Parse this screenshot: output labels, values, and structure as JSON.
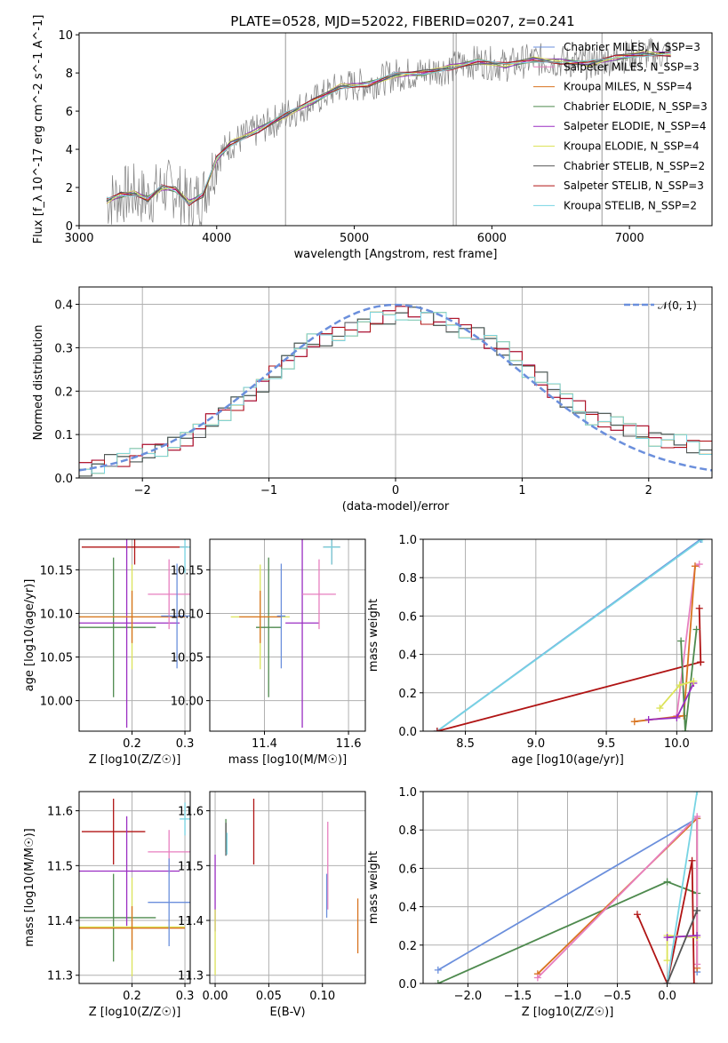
{
  "chart_data": [
    {
      "id": "spectrum",
      "type": "line",
      "title": "PLATE=0528, MJD=52022, FIBERID=0207, z=0.241",
      "xlabel": "wavelength [Angstrom, rest frame]",
      "ylabel": "Flux [f_λ 10^-17 erg cm^-2 s^-1 A^-1]",
      "xlim": [
        3000,
        7600
      ],
      "ylim": [
        0,
        10.1
      ],
      "xticks": [
        "3000",
        "4000",
        "5000",
        "6000",
        "7000"
      ],
      "yticks": [
        "0",
        "2",
        "4",
        "6",
        "8",
        "10"
      ],
      "grid": false,
      "legend_placement": "upper-right",
      "legend": [
        {
          "name": "Chabrier MILES, N_SSP=3",
          "color": "#6b8fdc"
        },
        {
          "name": "Salpeter MILES, N_SSP=3",
          "color": "#e77fbf"
        },
        {
          "name": "Kroupa MILES, N_SSP=4",
          "color": "#d8731f"
        },
        {
          "name": "Chabrier ELODIE, N_SSP=3",
          "color": "#4e8a4e"
        },
        {
          "name": "Salpeter ELODIE, N_SSP=4",
          "color": "#9a2ec2"
        },
        {
          "name": "Kroupa ELODIE, N_SSP=4",
          "color": "#dce35a"
        },
        {
          "name": "Chabrier STELIB, N_SSP=2",
          "color": "#555555"
        },
        {
          "name": "Salpeter STELIB, N_SSP=3",
          "color": "#b01414"
        },
        {
          "name": "Kroupa STELIB, N_SSP=2",
          "color": "#77d4e3"
        }
      ],
      "data_color": "#808080",
      "model_envelope": {
        "x": [
          3200,
          3300,
          3400,
          3500,
          3600,
          3700,
          3800,
          3900,
          4000,
          4100,
          4300,
          4500,
          4700,
          4900,
          5100,
          5300,
          5500,
          5700,
          5900,
          6100,
          6300,
          6500,
          6700,
          6900,
          7100,
          7300
        ],
        "y": [
          1.3,
          1.6,
          1.7,
          1.4,
          2.0,
          1.9,
          1.2,
          1.6,
          3.5,
          4.3,
          5.0,
          5.8,
          6.5,
          7.3,
          7.4,
          7.9,
          8.0,
          8.3,
          8.6,
          8.4,
          8.7,
          8.6,
          8.5,
          8.8,
          9.0,
          9.0
        ]
      }
    },
    {
      "id": "residuals",
      "type": "line",
      "xlabel": "(data-model)/error",
      "ylabel": "Normed distribution",
      "xlim": [
        -2.5,
        2.5
      ],
      "ylim": [
        0,
        0.44
      ],
      "xticks": [
        "−2",
        "−1",
        "0",
        "1",
        "2"
      ],
      "yticks": [
        "0.0",
        "0.1",
        "0.2",
        "0.3",
        "0.4"
      ],
      "grid": true,
      "legend": [
        {
          "name": "𝒩(0, 1)",
          "color": "#6b8fdc",
          "style": "dashed"
        }
      ],
      "histogram_envelope": {
        "x": [
          -2.5,
          -2.25,
          -2.0,
          -1.75,
          -1.5,
          -1.25,
          -1.0,
          -0.75,
          -0.5,
          -0.25,
          0.0,
          0.25,
          0.5,
          0.75,
          1.0,
          1.25,
          1.5,
          1.75,
          2.0,
          2.25,
          2.5
        ],
        "y": [
          0.02,
          0.04,
          0.06,
          0.08,
          0.13,
          0.18,
          0.24,
          0.31,
          0.33,
          0.36,
          0.38,
          0.37,
          0.34,
          0.31,
          0.25,
          0.19,
          0.14,
          0.12,
          0.09,
          0.08,
          0.06
        ]
      }
    },
    {
      "id": "age_vs_Z",
      "type": "scatter",
      "xlabel": "Z [log10(Z/Z☉)]",
      "ylabel": "age  [log10(age/yr)]",
      "xlim": [
        0.1,
        0.31
      ],
      "ylim": [
        9.965,
        10.185
      ],
      "xticks": [
        "0.2",
        "0.3"
      ],
      "yticks": [
        "10.00",
        "10.05",
        "10.10",
        "10.15"
      ],
      "grid": true,
      "points": [
        {
          "x": 0.205,
          "y": 10.176,
          "xerr": 0.1,
          "yerr": 0.02,
          "color": "#b01414"
        },
        {
          "x": 0.165,
          "y": 10.084,
          "xerr": 0.08,
          "yerr": 0.08,
          "color": "#4e8a4e"
        },
        {
          "x": 0.19,
          "y": 10.089,
          "xerr": 0.1,
          "yerr": 0.12,
          "color": "#9a2ec2"
        },
        {
          "x": 0.2,
          "y": 10.096,
          "xerr": 0.1,
          "yerr": 0.06,
          "color": "#dce35a"
        },
        {
          "x": 0.2,
          "y": 10.096,
          "xerr": 0.1,
          "yerr": 0.03,
          "color": "#d8731f"
        },
        {
          "x": 0.27,
          "y": 10.122,
          "xerr": 0.04,
          "yerr": 0.04,
          "color": "#e77fbf"
        },
        {
          "x": 0.285,
          "y": 10.097,
          "xerr": 0.03,
          "yerr": 0.06,
          "color": "#6b8fdc"
        },
        {
          "x": 0.3,
          "y": 10.176,
          "xerr": 0.01,
          "yerr": 0.03,
          "color": "#77d4e3"
        }
      ]
    },
    {
      "id": "age_vs_mass",
      "type": "scatter",
      "xlabel": "mass [log10(M/M☉)]",
      "xlim": [
        11.27,
        11.64
      ],
      "ylim": [
        9.965,
        10.185
      ],
      "xticks": [
        "11.4",
        "11.6"
      ],
      "yticks": [
        "10.00",
        "10.05",
        "10.10",
        "10.15"
      ],
      "grid": true,
      "points": [
        {
          "x": 11.56,
          "y": 10.176,
          "xerr": 0.02,
          "yerr": 0.02,
          "color": "#b01414"
        },
        {
          "x": 11.41,
          "y": 10.084,
          "xerr": 0.03,
          "yerr": 0.08,
          "color": "#4e8a4e"
        },
        {
          "x": 11.49,
          "y": 10.089,
          "xerr": 0.04,
          "yerr": 0.12,
          "color": "#9a2ec2"
        },
        {
          "x": 11.39,
          "y": 10.096,
          "xerr": 0.07,
          "yerr": 0.06,
          "color": "#dce35a"
        },
        {
          "x": 11.39,
          "y": 10.096,
          "xerr": 0.05,
          "yerr": 0.03,
          "color": "#d8731f"
        },
        {
          "x": 11.53,
          "y": 10.122,
          "xerr": 0.04,
          "yerr": 0.04,
          "color": "#e77fbf"
        },
        {
          "x": 11.44,
          "y": 10.097,
          "xerr": 0.01,
          "yerr": 0.06,
          "color": "#6b8fdc"
        },
        {
          "x": 11.56,
          "y": 10.176,
          "xerr": 0.02,
          "yerr": 0.02,
          "color": "#77d4e3"
        }
      ]
    },
    {
      "id": "mass_weight_vs_age",
      "type": "line",
      "xlabel": "age  [log10(age/yr)]",
      "ylabel": "mass weight",
      "xlim": [
        8.2,
        10.25
      ],
      "ylim": [
        0,
        1.0
      ],
      "xticks": [
        "8.5",
        "9.0",
        "9.5",
        "10.0"
      ],
      "yticks": [
        "0.0",
        "0.2",
        "0.4",
        "0.6",
        "0.8",
        "1.0"
      ],
      "grid": true,
      "series": [
        {
          "color": "#6b8fdc",
          "x": [
            8.3,
            10.17
          ],
          "y": [
            0.0,
            1.0
          ]
        },
        {
          "color": "#77d4e3",
          "x": [
            8.3,
            10.18
          ],
          "y": [
            0.0,
            1.0
          ]
        },
        {
          "color": "#b01414",
          "x": [
            8.3,
            10.17,
            10.16,
            10.17
          ],
          "y": [
            0.0,
            0.36,
            0.64,
            0.36
          ]
        },
        {
          "color": "#e77fbf",
          "x": [
            10.0,
            10.13,
            10.16
          ],
          "y": [
            0.08,
            0.86,
            0.87
          ]
        },
        {
          "color": "#d8731f",
          "x": [
            9.7,
            10.05,
            10.13
          ],
          "y": [
            0.05,
            0.08,
            0.86
          ]
        },
        {
          "color": "#4e8a4e",
          "x": [
            10.03,
            10.06,
            10.14
          ],
          "y": [
            0.47,
            0.0,
            0.53
          ]
        },
        {
          "color": "#9a2ec2",
          "x": [
            9.8,
            10.0,
            10.12
          ],
          "y": [
            0.06,
            0.07,
            0.25
          ]
        },
        {
          "color": "#dce35a",
          "x": [
            9.88,
            10.02,
            10.12
          ],
          "y": [
            0.12,
            0.24,
            0.26
          ]
        }
      ]
    },
    {
      "id": "mass_vs_Z",
      "type": "scatter",
      "xlabel": "Z [log10(Z/Z☉)]",
      "ylabel": "mass [log10(M/M☉)]",
      "xlim": [
        0.1,
        0.31
      ],
      "ylim": [
        11.285,
        11.635
      ],
      "xticks": [
        "0.2",
        "0.3"
      ],
      "yticks": [
        "11.3",
        "11.4",
        "11.5",
        "11.6"
      ],
      "grid": true,
      "points": [
        {
          "x": 0.165,
          "y": 11.562,
          "xerr": 0.06,
          "yerr": 0.06,
          "color": "#b01414"
        },
        {
          "x": 0.165,
          "y": 11.405,
          "xerr": 0.08,
          "yerr": 0.08,
          "color": "#4e8a4e"
        },
        {
          "x": 0.19,
          "y": 11.49,
          "xerr": 0.1,
          "yerr": 0.1,
          "color": "#9a2ec2"
        },
        {
          "x": 0.2,
          "y": 11.388,
          "xerr": 0.1,
          "yerr": 0.09,
          "color": "#dce35a"
        },
        {
          "x": 0.2,
          "y": 11.386,
          "xerr": 0.1,
          "yerr": 0.04,
          "color": "#d8731f"
        },
        {
          "x": 0.27,
          "y": 11.525,
          "xerr": 0.04,
          "yerr": 0.04,
          "color": "#e77fbf"
        },
        {
          "x": 0.27,
          "y": 11.433,
          "xerr": 0.04,
          "yerr": 0.08,
          "color": "#6b8fdc"
        },
        {
          "x": 0.3,
          "y": 11.585,
          "xerr": 0.01,
          "yerr": 0.03,
          "color": "#77d4e3"
        }
      ]
    },
    {
      "id": "mass_vs_EBV",
      "type": "scatter",
      "xlabel": "E(B-V)",
      "xlim": [
        -0.005,
        0.14
      ],
      "ylim": [
        11.285,
        11.635
      ],
      "xticks": [
        "0.00",
        "0.05",
        "0.10"
      ],
      "yticks": [
        "11.3",
        "11.4",
        "11.5",
        "11.6"
      ],
      "grid": true,
      "points": [
        {
          "x": 0.036,
          "y": 11.562,
          "yerr": 0.06,
          "color": "#b01414"
        },
        {
          "x": 0.01,
          "y": 11.555,
          "yerr": 0.03,
          "color": "#4e8a4e"
        },
        {
          "x": 0.01,
          "y": 11.548,
          "yerr": 0.03,
          "color": "#555555"
        },
        {
          "x": 0.0,
          "y": 11.45,
          "yerr": 0.07,
          "color": "#9a2ec2"
        },
        {
          "x": 0.0,
          "y": 11.36,
          "yerr": 0.06,
          "color": "#dce35a"
        },
        {
          "x": 0.133,
          "y": 11.39,
          "yerr": 0.05,
          "color": "#d8731f"
        },
        {
          "x": 0.105,
          "y": 11.5,
          "yerr": 0.08,
          "color": "#e77fbf"
        },
        {
          "x": 0.104,
          "y": 11.445,
          "yerr": 0.04,
          "color": "#6b8fdc"
        },
        {
          "x": 0.011,
          "y": 11.54,
          "yerr": 0.02,
          "color": "#77d4e3"
        }
      ]
    },
    {
      "id": "mass_weight_vs_Z",
      "type": "line",
      "xlabel": "Z [log10(Z/Z☉)]",
      "ylabel": "mass weight",
      "xlim": [
        -2.45,
        0.45
      ],
      "ylim": [
        0,
        1.0
      ],
      "xticks": [
        "−2.0",
        "−1.5",
        "−1.0",
        "−0.5",
        "0.0"
      ],
      "yticks": [
        "0.0",
        "0.2",
        "0.4",
        "0.6",
        "0.8",
        "1.0"
      ],
      "grid": true,
      "series": [
        {
          "color": "#6b8fdc",
          "x": [
            -2.3,
            0.3,
            0.3
          ],
          "y": [
            0.07,
            0.86,
            0.06
          ]
        },
        {
          "color": "#4e8a4e",
          "x": [
            -2.3,
            0.0,
            0.3
          ],
          "y": [
            0.0,
            0.53,
            0.47
          ]
        },
        {
          "color": "#d8731f",
          "x": [
            -1.3,
            0.3,
            0.3
          ],
          "y": [
            0.05,
            0.86,
            0.08
          ]
        },
        {
          "color": "#e77fbf",
          "x": [
            -1.3,
            0.3,
            0.3
          ],
          "y": [
            0.03,
            0.87,
            0.1
          ]
        },
        {
          "color": "#b01414",
          "x": [
            -0.3,
            0.0,
            0.25,
            0.27
          ],
          "y": [
            0.36,
            0.0,
            0.64,
            0.0
          ]
        },
        {
          "color": "#dce35a",
          "x": [
            0.0,
            0.0,
            0.3
          ],
          "y": [
            0.12,
            0.25,
            0.24
          ]
        },
        {
          "color": "#9a2ec2",
          "x": [
            0.0,
            0.3
          ],
          "y": [
            0.24,
            0.25
          ]
        },
        {
          "color": "#77d4e3",
          "x": [
            0.0,
            0.3
          ],
          "y": [
            0.0,
            1.0
          ]
        },
        {
          "color": "#555555",
          "x": [
            0.0,
            0.3
          ],
          "y": [
            0.0,
            0.38
          ]
        }
      ]
    }
  ]
}
